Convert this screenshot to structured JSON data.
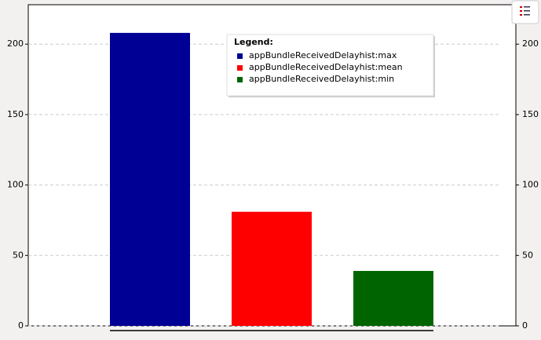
{
  "chart_data": {
    "type": "bar",
    "legend_title": "Legend:",
    "series": [
      {
        "name": "appBundleReceivedDelayhist:max",
        "color": "#000094",
        "values": [
          208
        ]
      },
      {
        "name": "appBundleReceivedDelayhist:mean",
        "color": "#ff0000",
        "values": [
          81
        ]
      },
      {
        "name": "appBundleReceivedDelayhist:min",
        "color": "#006400",
        "values": [
          39
        ]
      }
    ],
    "ylim": [
      0,
      228
    ],
    "yticks": [
      0,
      50,
      100,
      150,
      200
    ],
    "grid": true,
    "legend_position": "top"
  }
}
